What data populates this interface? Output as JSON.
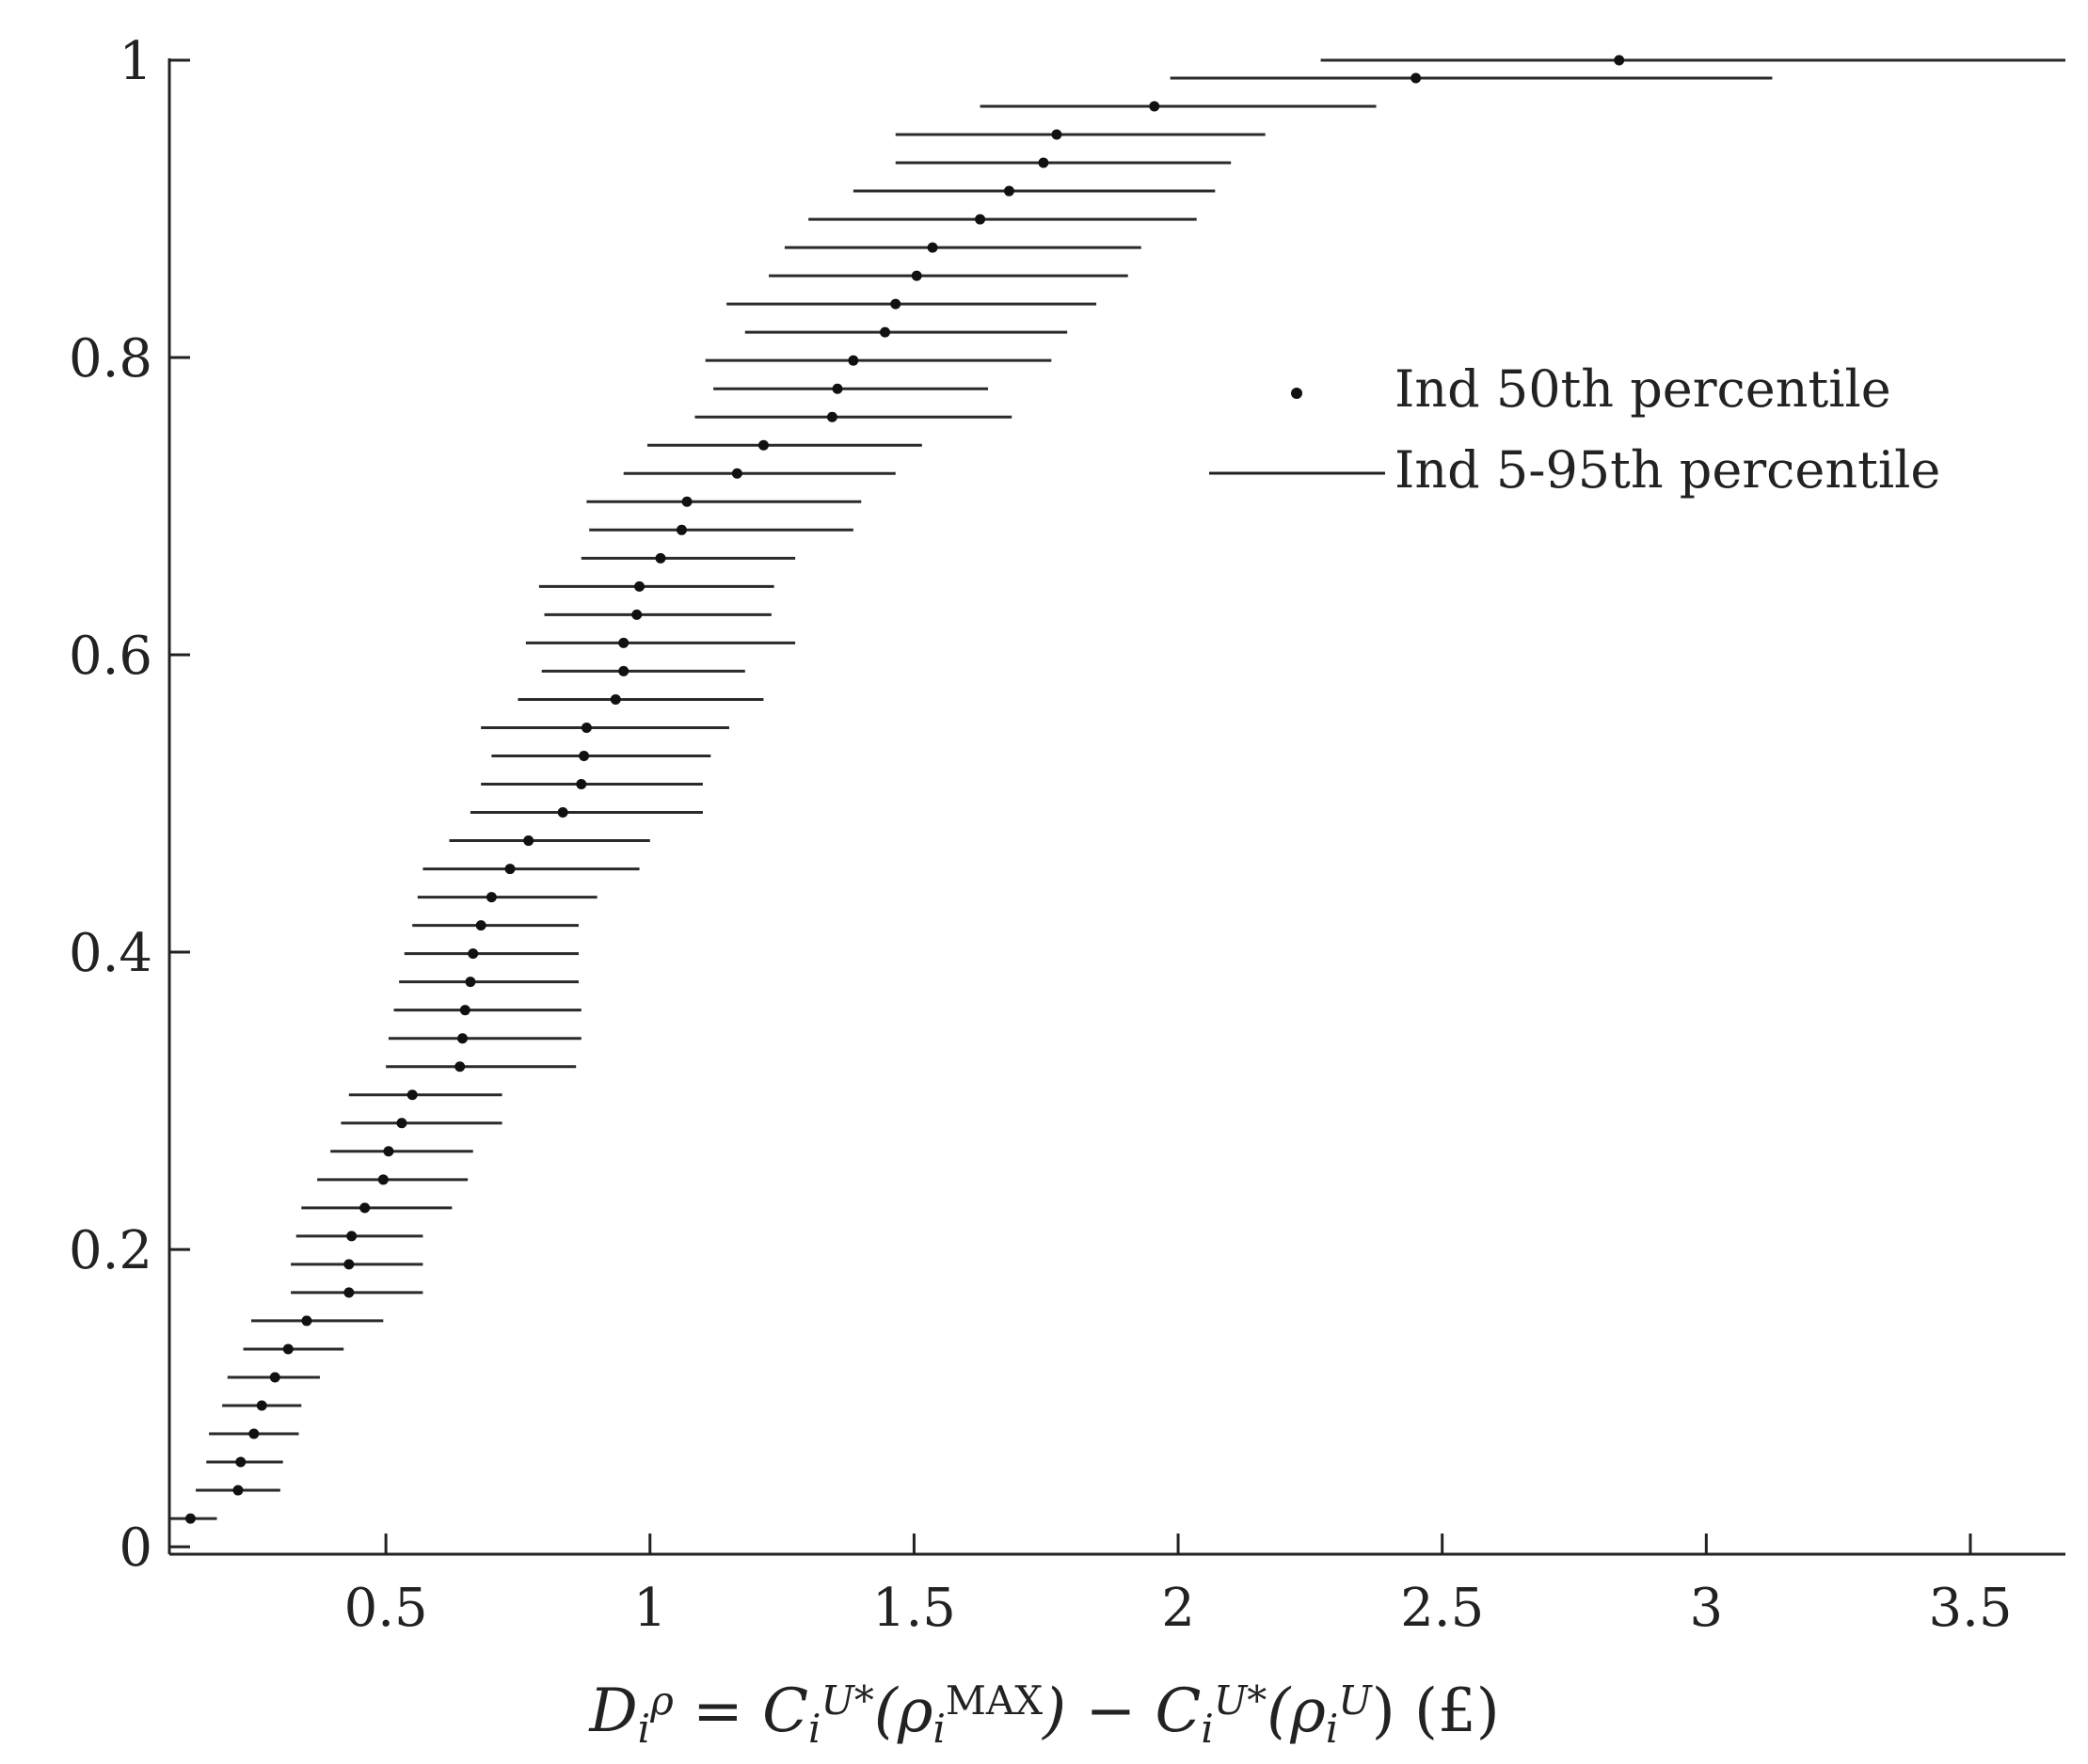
{
  "chart_data": {
    "type": "scatter",
    "xlabel": {
      "parts": [
        {
          "t": "D",
          "italic": true
        },
        {
          "t": "i",
          "sub": true,
          "italic": true
        },
        {
          "t": "ρ",
          "sup": true,
          "italic": true
        },
        {
          "t": " = C",
          "italic": true
        },
        {
          "t": "i",
          "sub": true,
          "italic": true
        },
        {
          "t": "U*",
          "sup": true,
          "italic": true
        },
        {
          "t": "(ρ",
          "italic": true
        },
        {
          "t": "i",
          "sub": true,
          "italic": true
        },
        {
          "t": "MAX",
          "sup": true,
          "italic": false
        },
        {
          "t": ") − C",
          "italic": true
        },
        {
          "t": "i",
          "sub": true,
          "italic": true
        },
        {
          "t": "U*",
          "sup": true,
          "italic": true
        },
        {
          "t": "(ρ",
          "italic": true
        },
        {
          "t": "i",
          "sub": true,
          "italic": true
        },
        {
          "t": "U",
          "sup": true,
          "italic": true
        },
        {
          "t": ")     (£)",
          "italic": false
        }
      ]
    },
    "ylabel": "",
    "xlim": [
      0.09,
      3.68
    ],
    "ylim": [
      -0.005,
      1.0
    ],
    "xticks": [
      0.5,
      1,
      1.5,
      2,
      2.5,
      3,
      3.5
    ],
    "xtick_labels": [
      "0.5",
      "1",
      "1.5",
      "2",
      "2.5",
      "3",
      "3.5"
    ],
    "yticks": [
      0,
      0.2,
      0.4,
      0.6,
      0.8,
      1
    ],
    "ytick_labels": [
      "0",
      "0.2",
      "0.4",
      "0.6",
      "0.8",
      "1"
    ],
    "grid": false,
    "legend": {
      "position": "upper-right",
      "entries": [
        {
          "label": "Ind 50th percentile",
          "marker": "dot"
        },
        {
          "label": "Ind 5-95th percentile",
          "marker": "line"
        }
      ]
    },
    "series": [
      {
        "name": "Ind 50th percentile",
        "y": [
          0.019,
          0.038,
          0.057,
          0.076,
          0.095,
          0.114,
          0.133,
          0.152,
          0.171,
          0.19,
          0.209,
          0.228,
          0.247,
          0.266,
          0.285,
          0.304,
          0.323,
          0.342,
          0.361,
          0.38,
          0.399,
          0.418,
          0.437,
          0.456,
          0.475,
          0.494,
          0.513,
          0.532,
          0.551,
          0.57,
          0.589,
          0.608,
          0.627,
          0.646,
          0.665,
          0.684,
          0.703,
          0.722,
          0.741,
          0.76,
          0.779,
          0.798,
          0.817,
          0.836,
          0.855,
          0.874,
          0.893,
          0.912,
          0.931,
          0.95,
          0.969,
          0.988,
          1.0
        ],
        "x": [
          0.13,
          0.22,
          0.225,
          0.25,
          0.265,
          0.29,
          0.315,
          0.35,
          0.43,
          0.43,
          0.435,
          0.46,
          0.495,
          0.505,
          0.53,
          0.55,
          0.64,
          0.645,
          0.65,
          0.66,
          0.665,
          0.68,
          0.7,
          0.735,
          0.77,
          0.835,
          0.87,
          0.875,
          0.88,
          0.935,
          0.95,
          0.95,
          0.975,
          0.98,
          1.02,
          1.06,
          1.07,
          1.165,
          1.215,
          1.345,
          1.355,
          1.385,
          1.445,
          1.465,
          1.505,
          1.535,
          1.625,
          1.68,
          1.745,
          1.77,
          1.955,
          2.45,
          2.835
        ]
      },
      {
        "name": "Ind 5-95th percentile",
        "low": [
          0.09,
          0.14,
          0.16,
          0.165,
          0.19,
          0.2,
          0.23,
          0.245,
          0.32,
          0.32,
          0.33,
          0.34,
          0.37,
          0.395,
          0.415,
          0.43,
          0.5,
          0.505,
          0.515,
          0.525,
          0.535,
          0.55,
          0.56,
          0.57,
          0.62,
          0.66,
          0.68,
          0.7,
          0.68,
          0.75,
          0.795,
          0.765,
          0.8,
          0.79,
          0.87,
          0.885,
          0.88,
          0.95,
          0.995,
          1.085,
          1.12,
          1.105,
          1.18,
          1.145,
          1.225,
          1.255,
          1.3,
          1.385,
          1.465,
          1.465,
          1.625,
          1.985,
          2.27
        ],
        "high": [
          0.18,
          0.3,
          0.305,
          0.335,
          0.34,
          0.375,
          0.42,
          0.495,
          0.57,
          0.57,
          0.57,
          0.625,
          0.655,
          0.665,
          0.72,
          0.72,
          0.86,
          0.87,
          0.87,
          0.865,
          0.865,
          0.865,
          0.9,
          0.98,
          1.0,
          1.1,
          1.1,
          1.115,
          1.15,
          1.215,
          1.18,
          1.275,
          1.23,
          1.235,
          1.275,
          1.385,
          1.4,
          1.465,
          1.515,
          1.685,
          1.64,
          1.76,
          1.79,
          1.845,
          1.905,
          1.93,
          2.035,
          2.07,
          2.1,
          2.165,
          2.375,
          3.125,
          3.68
        ]
      }
    ]
  }
}
